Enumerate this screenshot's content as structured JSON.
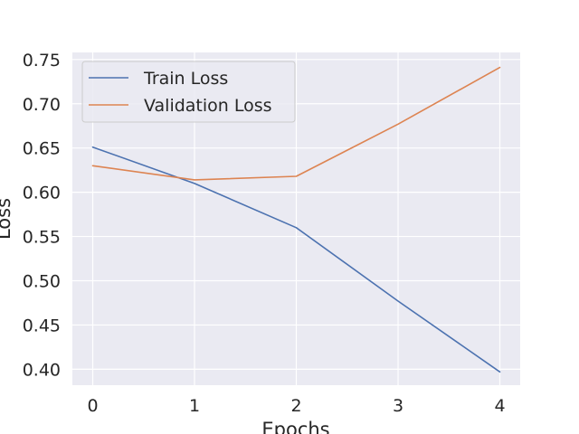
{
  "chart_data": {
    "type": "line",
    "xlabel": "Epochs",
    "ylabel": "Loss",
    "x": [
      0,
      1,
      2,
      3,
      4
    ],
    "xlim": [
      -0.2,
      4.2
    ],
    "ylim": [
      0.382,
      0.758
    ],
    "xticks": [
      0,
      1,
      2,
      3,
      4
    ],
    "yticks": [
      0.4,
      0.45,
      0.5,
      0.55,
      0.6,
      0.65,
      0.7,
      0.75
    ],
    "ytick_labels": [
      "0.40",
      "0.45",
      "0.50",
      "0.55",
      "0.60",
      "0.65",
      "0.70",
      "0.75"
    ],
    "grid": true,
    "legend_position": "upper-left",
    "series": [
      {
        "name": "Train Loss",
        "color": "#4c72b0",
        "values": [
          0.651,
          0.61,
          0.56,
          0.477,
          0.397
        ]
      },
      {
        "name": "Validation Loss",
        "color": "#dd8452",
        "values": [
          0.63,
          0.614,
          0.618,
          0.677,
          0.741
        ]
      }
    ],
    "background_color": "#eaeaf2",
    "grid_color": "#ffffff"
  }
}
